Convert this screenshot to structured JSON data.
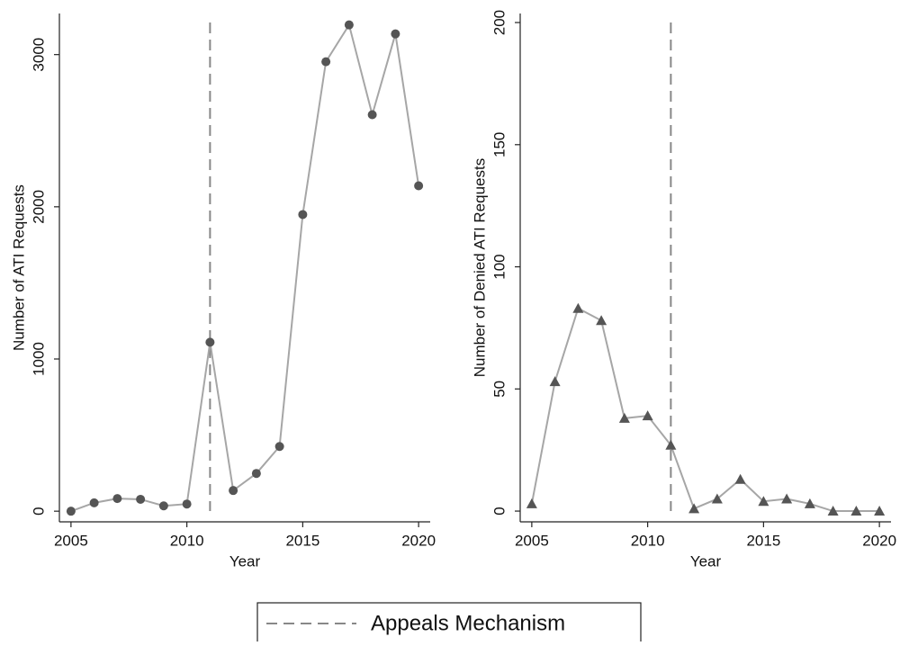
{
  "chart_data": [
    {
      "type": "line",
      "x_label": "Year",
      "y_label": "Number of ATI Requests",
      "x": [
        2005,
        2006,
        2007,
        2008,
        2009,
        2010,
        2011,
        2012,
        2013,
        2014,
        2015,
        2016,
        2017,
        2018,
        2019,
        2020
      ],
      "values": [
        0,
        55,
        83,
        78,
        35,
        47,
        1110,
        136,
        248,
        425,
        1949,
        2953,
        3195,
        2605,
        3136,
        2138
      ],
      "line_color": "#a6a6a6",
      "marker_color": "#555555",
      "marker": "circle",
      "xlim": [
        2004.5,
        2020.5
      ],
      "ylim": [
        -70,
        3270
      ],
      "xticks": [
        2005,
        2010,
        2015,
        2020
      ],
      "yticks": [
        0,
        1000,
        2000,
        3000
      ],
      "vline": {
        "x": 2011,
        "color": "#888888"
      }
    },
    {
      "type": "line",
      "x_label": "Year",
      "y_label": "Number of Denied ATI Requests",
      "x": [
        2005,
        2006,
        2007,
        2008,
        2009,
        2010,
        2011,
        2012,
        2013,
        2014,
        2015,
        2016,
        2017,
        2018,
        2019,
        2020
      ],
      "values": [
        3,
        53,
        83,
        78,
        38,
        39,
        27,
        1,
        5,
        13,
        4,
        5,
        3,
        0,
        0,
        0
      ],
      "line_color": "#a6a6a6",
      "marker_color": "#555555",
      "marker": "triangle",
      "xlim": [
        2004.5,
        2020.5
      ],
      "ylim": [
        -4.4,
        203.7
      ],
      "xticks": [
        2005,
        2010,
        2015,
        2020
      ],
      "yticks": [
        0,
        50,
        100,
        150,
        200
      ],
      "vline": {
        "x": 2011,
        "color": "#888888"
      }
    }
  ],
  "legend": {
    "label": "Appeals Mechanism"
  }
}
